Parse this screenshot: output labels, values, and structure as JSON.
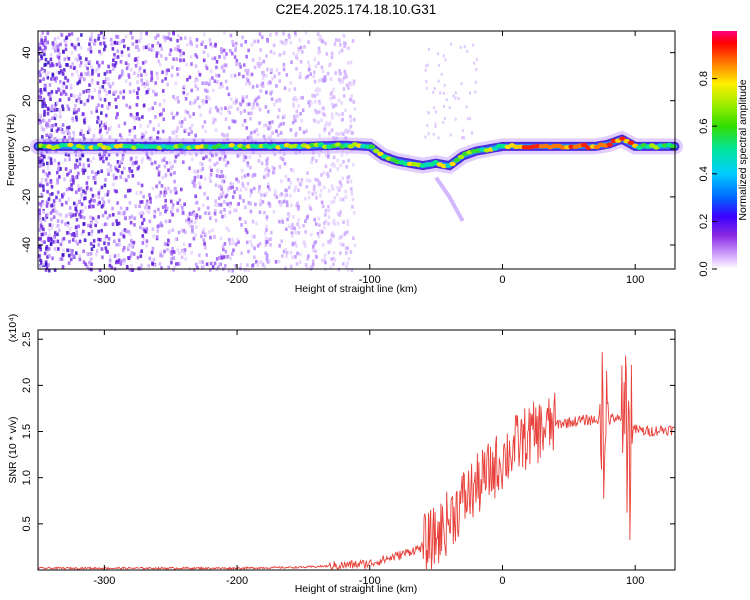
{
  "title": "C2E4.2025.174.18.10.G31",
  "chart_data": [
    {
      "type": "heatmap",
      "xlabel": "Height of straight line (km)",
      "ylabel": "Frequency (Hz)",
      "xlim": [
        -350,
        130
      ],
      "ylim": [
        -50,
        49
      ],
      "xticks": [
        -300,
        -200,
        -100,
        0,
        100
      ],
      "yticks": [
        -40,
        -20,
        0,
        20,
        40
      ],
      "grid": false,
      "colorbar": {
        "label": "Normalized spectral amplitude",
        "ticks": [
          0.0,
          0.2,
          0.4,
          0.6,
          0.8
        ],
        "range": [
          0.0,
          1.0
        ]
      },
      "ridge": {
        "x": [
          -350,
          -300,
          -250,
          -200,
          -150,
          -120,
          -100,
          -90,
          -80,
          -70,
          -60,
          -50,
          -40,
          -30,
          -20,
          -10,
          0,
          20,
          50,
          70,
          80,
          90,
          100,
          130
        ],
        "y": [
          1,
          1,
          1,
          1,
          1,
          1.5,
          1,
          -3,
          -5,
          -6,
          -7,
          -6,
          -7,
          -3,
          -1,
          0,
          1,
          1,
          1,
          1,
          2,
          4,
          1,
          1
        ]
      },
      "tail": {
        "x": [
          -50,
          -40,
          -30
        ],
        "y": [
          -12,
          -20,
          -30
        ]
      }
    },
    {
      "type": "line",
      "xlabel": "Height of straight line (km)",
      "ylabel": "SNR (10 * v/v)",
      "y_multiplier": "(x10⁴)",
      "xlim": [
        -350,
        130
      ],
      "ylim": [
        0,
        2.6
      ],
      "xticks": [
        -300,
        -200,
        -100,
        0,
        100
      ],
      "yticks": [
        0.5,
        1.0,
        1.5,
        2.0,
        2.5
      ],
      "grid": false,
      "color": "#e8403a",
      "series": [
        {
          "x": [
            -350,
            -300,
            -250,
            -200,
            -150,
            -120,
            -100,
            -80,
            -60,
            -50,
            -40,
            -30,
            -20,
            -10,
            0,
            10,
            20,
            30,
            40,
            50,
            60,
            70,
            75,
            80,
            85,
            90,
            95,
            100,
            110,
            120,
            130
          ],
          "values": [
            0.02,
            0.02,
            0.02,
            0.02,
            0.03,
            0.05,
            0.07,
            0.15,
            0.25,
            0.35,
            0.55,
            0.75,
            0.9,
            1.05,
            1.2,
            1.35,
            1.45,
            1.52,
            1.58,
            1.6,
            1.62,
            1.63,
            1.64,
            1.62,
            1.65,
            1.6,
            1.55,
            1.52,
            1.5,
            1.52,
            1.52
          ]
        }
      ]
    }
  ]
}
